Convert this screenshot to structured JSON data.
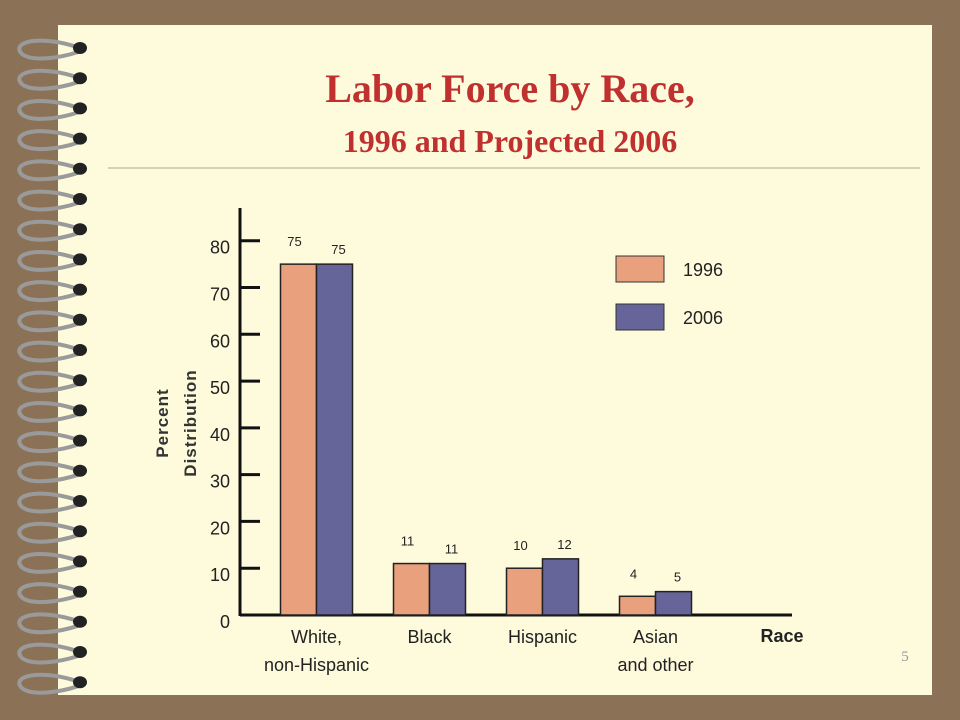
{
  "chart_data": {
    "type": "bar",
    "title": "Labor Force by Race,",
    "subtitle": "1996 and Projected 2006",
    "y_label": "Percent\nDistribution",
    "x_label": "Race",
    "categories": [
      "White,\nnon-Hispanic",
      "Black",
      "Hispanic",
      "Asian\nand other"
    ],
    "series": [
      {
        "name": "1996",
        "color": "#e9a07c",
        "values": [
          75,
          11,
          10,
          4
        ]
      },
      {
        "name": "2006",
        "color": "#65659a",
        "values": [
          75,
          11,
          12,
          5
        ]
      }
    ],
    "ylim": [
      0,
      87
    ],
    "yticks": [
      0,
      10,
      20,
      30,
      40,
      50,
      60,
      70,
      80
    ],
    "legend": "upper right"
  },
  "page_number": 5
}
